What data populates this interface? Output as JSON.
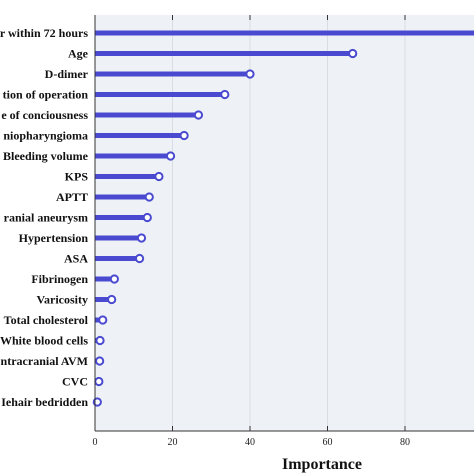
{
  "chart_data": {
    "type": "bar",
    "orientation": "horizontal",
    "style": "lollipop",
    "categories": [
      "r within 72 hours",
      "Age",
      "D-dimer",
      "tion of operation",
      "e of conciousness",
      "niopharyngioma",
      "Bleeding volume",
      "KPS",
      "APTT",
      "ranial aneurysm",
      "Hypertension",
      "ASA",
      "Fibrinogen",
      "Varicosity",
      "Total cholesterol",
      "White blood cells",
      "ntracranial AVM",
      "CVC",
      "Iehair bedridden"
    ],
    "values": [
      100,
      66.5,
      40,
      33.5,
      26.7,
      23,
      19.5,
      16.5,
      14,
      13.5,
      12,
      11.5,
      5,
      4.3,
      2,
      1.3,
      1.2,
      1.0,
      0.6
    ],
    "xlabel": "Importance",
    "ylabel": "",
    "xlim": [
      0,
      100
    ],
    "xticks": [
      0,
      20,
      40,
      60,
      80
    ],
    "grid": true,
    "colors": {
      "bar": "#4a4ad0",
      "marker_fill": "#ffffff",
      "panel_background": "#eef2f7",
      "grid": "#d9dde3",
      "axis": "#333333"
    }
  }
}
